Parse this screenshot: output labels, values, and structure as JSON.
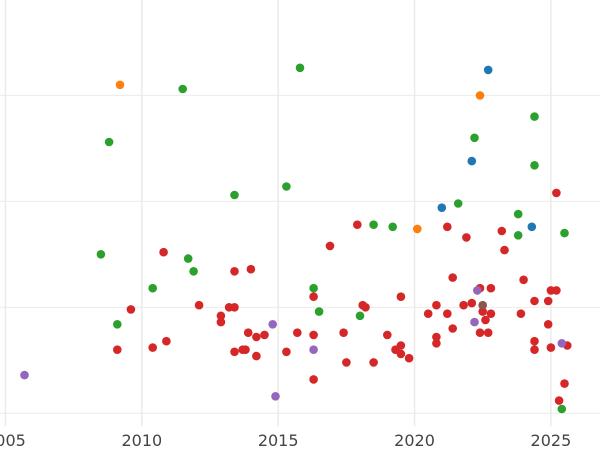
{
  "chart_data": {
    "type": "scatter",
    "title": "",
    "xlabel": "",
    "ylabel": "",
    "xlim": [
      2004.8,
      2026.8
    ],
    "ylim": [
      -0.6,
      19.5
    ],
    "x_ticks": [
      2005,
      2010,
      2015,
      2020,
      2025
    ],
    "x_tick_labels": [
      "2005",
      "2010",
      "2015",
      "2020",
      "2025"
    ],
    "y_gridlines": [
      0,
      5,
      10,
      15,
      20
    ],
    "grid": true,
    "legend": "none",
    "series": [
      {
        "color": "#d62728",
        "points": [
          [
            2009.1,
            3.0
          ],
          [
            2009.6,
            4.9
          ],
          [
            2010.4,
            3.1
          ],
          [
            2010.9,
            3.4
          ],
          [
            2010.8,
            7.6
          ],
          [
            2012.1,
            5.1
          ],
          [
            2012.9,
            4.6
          ],
          [
            2012.9,
            4.3
          ],
          [
            2013.2,
            5.0
          ],
          [
            2013.4,
            5.0
          ],
          [
            2013.4,
            6.7
          ],
          [
            2013.4,
            2.9
          ],
          [
            2013.7,
            3.0
          ],
          [
            2013.8,
            3.0
          ],
          [
            2013.9,
            3.8
          ],
          [
            2014.0,
            6.8
          ],
          [
            2014.2,
            2.7
          ],
          [
            2014.2,
            3.6
          ],
          [
            2014.5,
            3.7
          ],
          [
            2015.3,
            2.9
          ],
          [
            2015.7,
            3.8
          ],
          [
            2016.3,
            3.7
          ],
          [
            2016.3,
            5.5
          ],
          [
            2016.3,
            1.6
          ],
          [
            2016.9,
            7.9
          ],
          [
            2017.4,
            3.8
          ],
          [
            2017.5,
            2.4
          ],
          [
            2017.9,
            8.9
          ],
          [
            2018.1,
            5.1
          ],
          [
            2018.2,
            5.0
          ],
          [
            2018.5,
            2.4
          ],
          [
            2019.0,
            3.7
          ],
          [
            2019.3,
            3.0
          ],
          [
            2019.5,
            3.2
          ],
          [
            2019.5,
            5.5
          ],
          [
            2019.5,
            2.8
          ],
          [
            2019.8,
            2.6
          ],
          [
            2020.5,
            4.7
          ],
          [
            2020.8,
            3.6
          ],
          [
            2020.8,
            3.3
          ],
          [
            2020.8,
            5.1
          ],
          [
            2021.2,
            4.7
          ],
          [
            2021.2,
            8.8
          ],
          [
            2021.4,
            4.0
          ],
          [
            2021.4,
            6.4
          ],
          [
            2021.8,
            5.1
          ],
          [
            2021.9,
            8.3
          ],
          [
            2022.1,
            5.2
          ],
          [
            2022.4,
            3.8
          ],
          [
            2022.4,
            5.9
          ],
          [
            2022.5,
            4.8
          ],
          [
            2022.6,
            4.4
          ],
          [
            2022.7,
            3.8
          ],
          [
            2022.8,
            4.7
          ],
          [
            2022.8,
            5.9
          ],
          [
            2023.2,
            8.6
          ],
          [
            2023.3,
            7.7
          ],
          [
            2023.9,
            4.7
          ],
          [
            2024.0,
            6.3
          ],
          [
            2024.4,
            3.4
          ],
          [
            2024.4,
            3.0
          ],
          [
            2024.4,
            5.3
          ],
          [
            2024.9,
            5.3
          ],
          [
            2024.9,
            4.2
          ],
          [
            2025.0,
            5.8
          ],
          [
            2025.0,
            3.1
          ],
          [
            2025.2,
            5.8
          ],
          [
            2025.2,
            10.4
          ],
          [
            2025.3,
            0.6
          ],
          [
            2025.5,
            1.4
          ],
          [
            2025.6,
            3.2
          ]
        ]
      },
      {
        "color": "#2ca02c",
        "points": [
          [
            2008.5,
            7.5
          ],
          [
            2008.8,
            12.8
          ],
          [
            2009.1,
            4.2
          ],
          [
            2010.4,
            5.9
          ],
          [
            2011.5,
            15.3
          ],
          [
            2011.7,
            7.3
          ],
          [
            2011.9,
            6.7
          ],
          [
            2013.4,
            10.3
          ],
          [
            2015.3,
            10.7
          ],
          [
            2015.8,
            16.3
          ],
          [
            2016.3,
            5.9
          ],
          [
            2016.5,
            4.8
          ],
          [
            2018.0,
            4.6
          ],
          [
            2018.5,
            8.9
          ],
          [
            2019.2,
            8.8
          ],
          [
            2021.6,
            9.9
          ],
          [
            2022.2,
            13.0
          ],
          [
            2023.8,
            8.4
          ],
          [
            2023.8,
            9.4
          ],
          [
            2024.4,
            14.0
          ],
          [
            2024.4,
            11.7
          ],
          [
            2025.4,
            0.2
          ],
          [
            2025.5,
            8.5
          ]
        ]
      },
      {
        "color": "#ff7f0e",
        "points": [
          [
            2009.2,
            15.5
          ],
          [
            2020.1,
            8.7
          ],
          [
            2022.4,
            15.0
          ]
        ]
      },
      {
        "color": "#1f77b4",
        "points": [
          [
            2021.0,
            9.7
          ],
          [
            2022.1,
            11.9
          ],
          [
            2022.7,
            16.2
          ],
          [
            2024.3,
            8.8
          ]
        ]
      },
      {
        "color": "#9467bd",
        "points": [
          [
            2005.7,
            1.8
          ],
          [
            2014.8,
            4.2
          ],
          [
            2014.9,
            0.8
          ],
          [
            2016.3,
            3.0
          ],
          [
            2022.2,
            4.3
          ],
          [
            2022.3,
            5.8
          ],
          [
            2025.4,
            3.3
          ]
        ]
      },
      {
        "color": "#8c564b",
        "points": [
          [
            2022.5,
            5.1
          ]
        ]
      }
    ]
  }
}
